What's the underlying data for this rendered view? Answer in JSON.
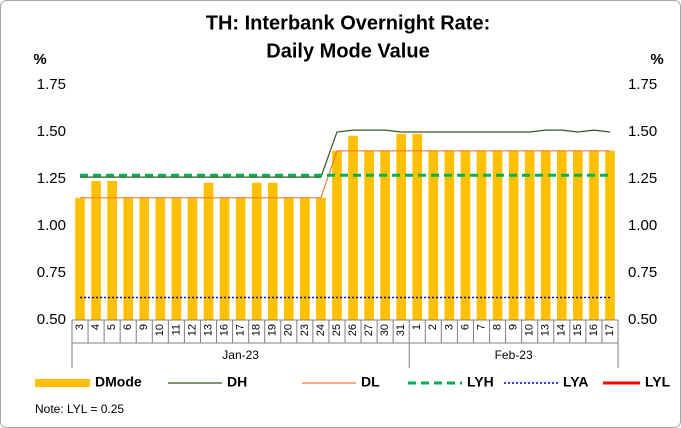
{
  "chart_data": {
    "type": "bar",
    "title_lines": [
      "TH: Interbank Overnight Rate:",
      "Daily Mode Value"
    ],
    "y_label": "%",
    "y2_label": "%",
    "groups": [
      {
        "label": "Jan-23",
        "categories": [
          "3",
          "4",
          "5",
          "6",
          "9",
          "10",
          "11",
          "12",
          "13",
          "16",
          "17",
          "18",
          "19",
          "20",
          "23",
          "24",
          "25",
          "26",
          "27",
          "30",
          "31"
        ]
      },
      {
        "label": "Feb-23",
        "categories": [
          "1",
          "2",
          "3",
          "6",
          "7",
          "8",
          "9",
          "10",
          "13",
          "14",
          "15",
          "16",
          "17"
        ]
      }
    ],
    "ylim": [
      0.5,
      1.75
    ],
    "yticks": [
      {
        "value": 0.5,
        "label": "0.50"
      },
      {
        "value": 0.75,
        "label": "0.75"
      },
      {
        "value": 1.0,
        "label": "1.00"
      },
      {
        "value": 1.25,
        "label": "1.25"
      },
      {
        "value": 1.5,
        "label": "1.50"
      },
      {
        "value": 1.75,
        "label": "1.75"
      }
    ],
    "y2lim": [
      0.5,
      1.75
    ],
    "y2ticks": [
      {
        "value": 0.5,
        "label": "0.50"
      },
      {
        "value": 0.75,
        "label": "0.75"
      },
      {
        "value": 1.0,
        "label": "1.00"
      },
      {
        "value": 1.25,
        "label": "1.25"
      },
      {
        "value": 1.5,
        "label": "1.50"
      },
      {
        "value": 1.75,
        "label": "1.75"
      }
    ],
    "legend": "bottom",
    "series": [
      {
        "name": "DMode",
        "kind": "bar",
        "color": "#FFC000",
        "values": [
          1.15,
          1.24,
          1.24,
          1.15,
          1.15,
          1.15,
          1.15,
          1.15,
          1.23,
          1.15,
          1.15,
          1.23,
          1.23,
          1.15,
          1.15,
          1.15,
          1.4,
          1.48,
          1.4,
          1.4,
          1.49,
          1.49,
          1.4,
          1.4,
          1.4,
          1.4,
          1.4,
          1.4,
          1.4,
          1.4,
          1.4,
          1.4,
          1.4,
          1.4
        ]
      },
      {
        "name": "DH",
        "kind": "line",
        "style": "solid",
        "color": "#375623",
        "values": [
          1.26,
          1.26,
          1.26,
          1.26,
          1.26,
          1.26,
          1.26,
          1.26,
          1.26,
          1.26,
          1.26,
          1.26,
          1.26,
          1.26,
          1.26,
          1.26,
          1.5,
          1.51,
          1.51,
          1.51,
          1.5,
          1.5,
          1.5,
          1.5,
          1.5,
          1.5,
          1.5,
          1.5,
          1.5,
          1.51,
          1.51,
          1.5,
          1.51,
          1.5
        ]
      },
      {
        "name": "DL",
        "kind": "line",
        "style": "solid",
        "color": "#ED7D31",
        "values": [
          1.15,
          1.15,
          1.15,
          1.15,
          1.15,
          1.15,
          1.15,
          1.15,
          1.15,
          1.15,
          1.15,
          1.15,
          1.15,
          1.15,
          1.15,
          1.15,
          1.4,
          1.4,
          1.4,
          1.4,
          1.4,
          1.4,
          1.4,
          1.4,
          1.4,
          1.4,
          1.4,
          1.4,
          1.4,
          1.4,
          1.4,
          1.4,
          1.4,
          1.4
        ]
      },
      {
        "name": "LYH",
        "kind": "line",
        "style": "dash",
        "color": "#00B050",
        "values": [
          1.27,
          1.27,
          1.27,
          1.27,
          1.27,
          1.27,
          1.27,
          1.27,
          1.27,
          1.27,
          1.27,
          1.27,
          1.27,
          1.27,
          1.27,
          1.27,
          1.27,
          1.27,
          1.27,
          1.27,
          1.27,
          1.27,
          1.27,
          1.27,
          1.27,
          1.27,
          1.27,
          1.27,
          1.27,
          1.27,
          1.27,
          1.27,
          1.27,
          1.27
        ]
      },
      {
        "name": "LYA",
        "kind": "line",
        "style": "dot",
        "color": "#0000CC",
        "values": [
          0.62,
          0.62,
          0.62,
          0.62,
          0.62,
          0.62,
          0.62,
          0.62,
          0.62,
          0.62,
          0.62,
          0.62,
          0.62,
          0.62,
          0.62,
          0.62,
          0.62,
          0.62,
          0.62,
          0.62,
          0.62,
          0.62,
          0.62,
          0.62,
          0.62,
          0.62,
          0.62,
          0.62,
          0.62,
          0.62,
          0.62,
          0.62,
          0.62,
          0.62
        ]
      },
      {
        "name": "LYL",
        "kind": "line",
        "style": "thick",
        "color": "#FF0000",
        "values": [
          0.25,
          0.25,
          0.25,
          0.25,
          0.25,
          0.25,
          0.25,
          0.25,
          0.25,
          0.25,
          0.25,
          0.25,
          0.25,
          0.25,
          0.25,
          0.25,
          0.25,
          0.25,
          0.25,
          0.25,
          0.25,
          0.25,
          0.25,
          0.25,
          0.25,
          0.25,
          0.25,
          0.25,
          0.25,
          0.25,
          0.25,
          0.25,
          0.25,
          0.25
        ]
      }
    ],
    "note": "Note: LYL = 0.25"
  }
}
